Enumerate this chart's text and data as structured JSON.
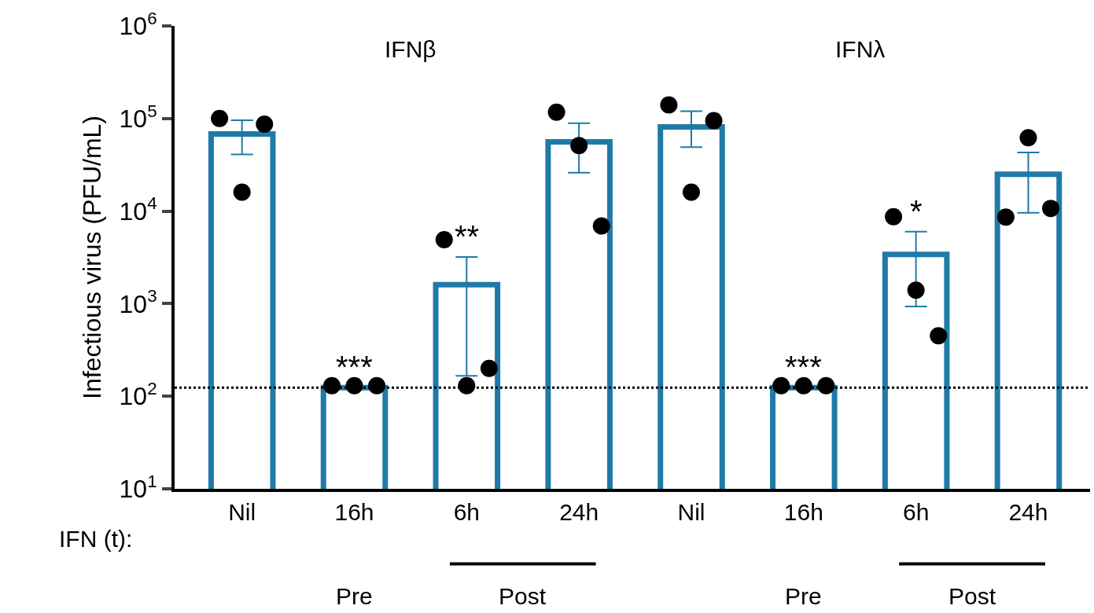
{
  "chart_data": {
    "type": "bar",
    "ylabel": "Infectious virus (PFU/mL)",
    "categories": [
      "Nil",
      "16h",
      "6h",
      "24h",
      "Nil",
      "16h",
      "6h",
      "24h"
    ],
    "log": true,
    "ylim": [
      10,
      1000000
    ],
    "yticks": [
      {
        "value": 10,
        "label": "10$^{1}$"
      },
      {
        "value": 100,
        "label": "10$^{2}$"
      },
      {
        "value": 1000,
        "label": "10$^{3}$"
      },
      {
        "value": 10000,
        "label": "10$^{4}$"
      },
      {
        "value": 100000,
        "label": "10$^{5}$"
      },
      {
        "value": 1000000,
        "label": "10$^{6}$"
      }
    ],
    "grid": false,
    "series": [
      {
        "color": "#1f7aa8",
        "values": [
          68000,
          124,
          1600,
          56000,
          81000,
          124,
          3400,
          25000
        ],
        "errors": [
          [
            41000,
            96000
          ],
          null,
          [
            166,
            3200
          ],
          [
            26000,
            89000
          ],
          [
            49000,
            120000
          ],
          null,
          [
            930,
            6000
          ],
          [
            9600,
            43000
          ]
        ],
        "value_labels": [
          null,
          "***",
          "**",
          null,
          null,
          "***",
          "*",
          null
        ]
      },
      {
        "type": "scatter",
        "color": "#000000",
        "marker": "circle",
        "values": [
          100000,
          130,
          4900,
          117000,
          140000,
          130,
          8700,
          8600
        ]
      },
      {
        "type": "scatter",
        "color": "#000000",
        "marker": "circle",
        "values": [
          16000,
          130,
          130,
          51000,
          16000,
          130,
          1400,
          62000
        ]
      },
      {
        "type": "scatter",
        "color": "#000000",
        "marker": "circle",
        "values": [
          87000,
          130,
          200,
          6900,
          95000,
          130,
          450,
          10700
        ]
      }
    ],
    "ref_lines": [
      {
        "axis": "y",
        "value": 124,
        "line_style": "dotted",
        "color": "#000000"
      }
    ],
    "annotations": [
      "IFNβ",
      "IFNλ",
      "IFN (t):",
      "Pre",
      "Post",
      "Pre",
      "Post"
    ]
  }
}
